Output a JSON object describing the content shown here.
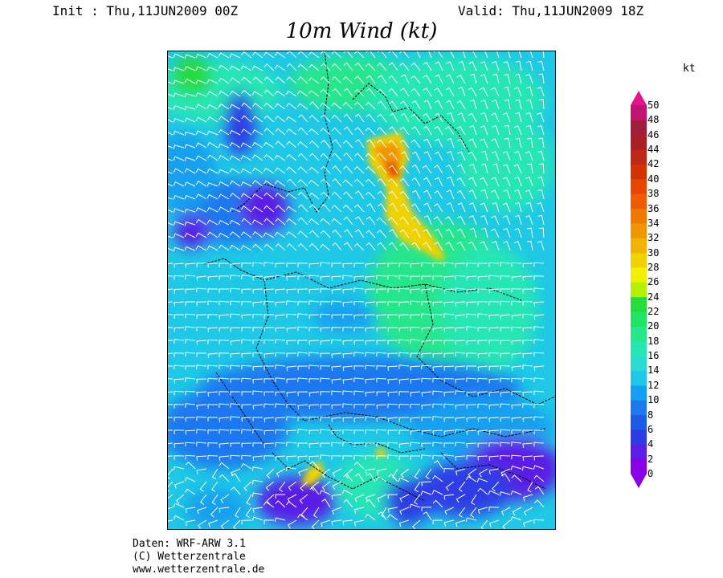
{
  "header": {
    "init": "Init : Thu,11JUN2009 00Z",
    "valid": "Valid: Thu,11JUN2009 18Z",
    "title": "10m Wind (kt)"
  },
  "colorbar": {
    "unit": "kt",
    "levels": [
      0,
      2,
      4,
      6,
      8,
      10,
      12,
      14,
      16,
      18,
      20,
      22,
      24,
      26,
      28,
      30,
      32,
      34,
      36,
      38,
      40,
      42,
      44,
      46,
      48,
      50
    ],
    "colors": [
      "#8a00e6",
      "#5a1ee6",
      "#2d3ce6",
      "#1e5ae6",
      "#1e78f0",
      "#14a0f0",
      "#1ec8e6",
      "#28dcd2",
      "#28e6b4",
      "#28e68c",
      "#1ee664",
      "#28dc3c",
      "#b4f000",
      "#f0f000",
      "#f0d200",
      "#f0b400",
      "#f09600",
      "#f07800",
      "#f05a00",
      "#e64600",
      "#d23200",
      "#be2814",
      "#aa1e28",
      "#a01e3c",
      "#c01470",
      "#e6148c"
    ]
  },
  "credits": [
    "Daten: WRF-ARW 3.1",
    "(C) Wetterzentrale",
    "www.wetterzentrale.de"
  ]
}
